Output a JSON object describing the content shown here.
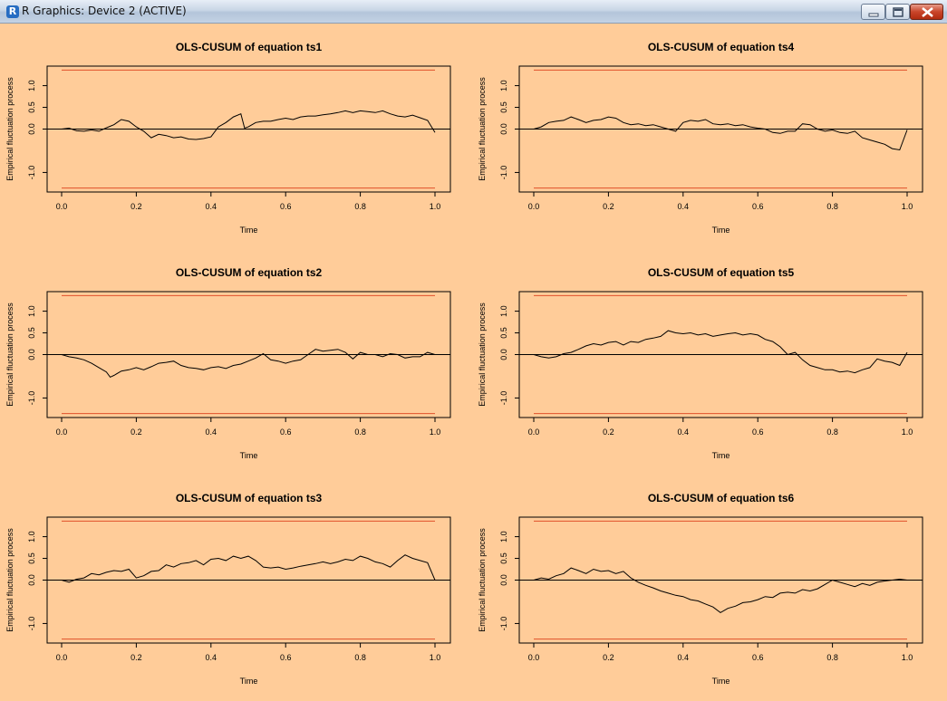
{
  "window": {
    "title": "R Graphics: Device 2 (ACTIVE)",
    "app_icon": "R",
    "controls": [
      "minimize-icon",
      "maximize-icon",
      "close-icon"
    ]
  },
  "colors": {
    "background": "#ffcc99",
    "boundary": "#e0502a",
    "process": "#000000"
  },
  "chart_data": [
    {
      "type": "line",
      "title": "OLS-CUSUM of equation ts1",
      "xlabel": "Time",
      "ylabel": "Empirical fluctuation process",
      "xlim": [
        0,
        1
      ],
      "ylim": [
        -1.45,
        1.45
      ],
      "xticks": [
        "0.0",
        "0.2",
        "0.4",
        "0.6",
        "0.8",
        "1.0"
      ],
      "yticks": [
        "-1.0",
        "0.0",
        "0.5",
        "1.0"
      ],
      "boundary": 1.36,
      "x": [
        0,
        0.02,
        0.04,
        0.06,
        0.08,
        0.1,
        0.12,
        0.14,
        0.16,
        0.18,
        0.2,
        0.22,
        0.24,
        0.26,
        0.28,
        0.3,
        0.32,
        0.34,
        0.36,
        0.38,
        0.4,
        0.42,
        0.44,
        0.46,
        0.48,
        0.49,
        0.5,
        0.52,
        0.54,
        0.56,
        0.58,
        0.6,
        0.62,
        0.64,
        0.66,
        0.68,
        0.7,
        0.72,
        0.74,
        0.76,
        0.78,
        0.8,
        0.82,
        0.84,
        0.86,
        0.88,
        0.9,
        0.92,
        0.94,
        0.96,
        0.98,
        1.0
      ],
      "y": [
        0.0,
        0.02,
        -0.04,
        -0.05,
        -0.02,
        -0.05,
        0.03,
        0.1,
        0.22,
        0.18,
        0.05,
        -0.05,
        -0.2,
        -0.12,
        -0.15,
        -0.2,
        -0.18,
        -0.23,
        -0.24,
        -0.22,
        -0.18,
        0.05,
        0.15,
        0.28,
        0.35,
        0.02,
        0.05,
        0.15,
        0.18,
        0.18,
        0.22,
        0.25,
        0.22,
        0.28,
        0.3,
        0.3,
        0.33,
        0.35,
        0.38,
        0.42,
        0.38,
        0.42,
        0.4,
        0.38,
        0.42,
        0.35,
        0.3,
        0.28,
        0.32,
        0.26,
        0.2,
        -0.08
      ]
    },
    {
      "type": "line",
      "title": "OLS-CUSUM of equation ts4",
      "xlabel": "Time",
      "ylabel": "Empirical fluctuation process",
      "xlim": [
        0,
        1
      ],
      "ylim": [
        -1.45,
        1.45
      ],
      "xticks": [
        "0.0",
        "0.2",
        "0.4",
        "0.6",
        "0.8",
        "1.0"
      ],
      "yticks": [
        "-1.0",
        "0.0",
        "0.5",
        "1.0"
      ],
      "boundary": 1.36,
      "x": [
        0,
        0.02,
        0.04,
        0.06,
        0.08,
        0.1,
        0.12,
        0.14,
        0.16,
        0.18,
        0.2,
        0.22,
        0.24,
        0.26,
        0.28,
        0.3,
        0.32,
        0.34,
        0.36,
        0.38,
        0.4,
        0.42,
        0.44,
        0.46,
        0.48,
        0.5,
        0.52,
        0.54,
        0.56,
        0.58,
        0.6,
        0.62,
        0.64,
        0.66,
        0.68,
        0.7,
        0.72,
        0.74,
        0.76,
        0.78,
        0.8,
        0.82,
        0.84,
        0.86,
        0.88,
        0.9,
        0.92,
        0.94,
        0.96,
        0.98,
        1.0
      ],
      "y": [
        0.0,
        0.05,
        0.15,
        0.18,
        0.2,
        0.28,
        0.22,
        0.15,
        0.2,
        0.22,
        0.28,
        0.25,
        0.15,
        0.1,
        0.12,
        0.08,
        0.1,
        0.05,
        0.0,
        -0.05,
        0.15,
        0.2,
        0.18,
        0.22,
        0.12,
        0.1,
        0.12,
        0.08,
        0.1,
        0.05,
        0.02,
        0.0,
        -0.08,
        -0.1,
        -0.05,
        -0.05,
        0.12,
        0.1,
        0.0,
        -0.05,
        -0.02,
        -0.08,
        -0.1,
        -0.05,
        -0.2,
        -0.25,
        -0.3,
        -0.35,
        -0.45,
        -0.48,
        -0.02
      ]
    },
    {
      "type": "line",
      "title": "OLS-CUSUM of equation ts2",
      "xlabel": "Time",
      "ylabel": "Empirical fluctuation process",
      "xlim": [
        0,
        1
      ],
      "ylim": [
        -1.45,
        1.45
      ],
      "xticks": [
        "0.0",
        "0.2",
        "0.4",
        "0.6",
        "0.8",
        "1.0"
      ],
      "yticks": [
        "-1.0",
        "0.0",
        "0.5",
        "1.0"
      ],
      "boundary": 1.36,
      "x": [
        0,
        0.02,
        0.04,
        0.06,
        0.08,
        0.1,
        0.12,
        0.13,
        0.14,
        0.16,
        0.18,
        0.2,
        0.22,
        0.24,
        0.26,
        0.28,
        0.3,
        0.32,
        0.34,
        0.36,
        0.38,
        0.4,
        0.42,
        0.44,
        0.46,
        0.48,
        0.5,
        0.52,
        0.54,
        0.56,
        0.58,
        0.6,
        0.62,
        0.64,
        0.66,
        0.68,
        0.7,
        0.72,
        0.74,
        0.76,
        0.78,
        0.8,
        0.82,
        0.84,
        0.86,
        0.88,
        0.9,
        0.92,
        0.94,
        0.96,
        0.98,
        1.0
      ],
      "y": [
        0.0,
        -0.05,
        -0.08,
        -0.12,
        -0.2,
        -0.3,
        -0.4,
        -0.52,
        -0.48,
        -0.38,
        -0.35,
        -0.3,
        -0.35,
        -0.28,
        -0.2,
        -0.18,
        -0.15,
        -0.25,
        -0.3,
        -0.32,
        -0.35,
        -0.3,
        -0.28,
        -0.32,
        -0.25,
        -0.22,
        -0.15,
        -0.08,
        0.02,
        -0.12,
        -0.15,
        -0.2,
        -0.15,
        -0.12,
        0.0,
        0.12,
        0.08,
        0.1,
        0.12,
        0.05,
        -0.1,
        0.05,
        0.0,
        0.0,
        -0.05,
        0.02,
        0.0,
        -0.08,
        -0.05,
        -0.05,
        0.05,
        0.0
      ]
    },
    {
      "type": "line",
      "title": "OLS-CUSUM of equation ts5",
      "xlabel": "Time",
      "ylabel": "Empirical fluctuation process",
      "xlim": [
        0,
        1
      ],
      "ylim": [
        -1.45,
        1.45
      ],
      "xticks": [
        "0.0",
        "0.2",
        "0.4",
        "0.6",
        "0.8",
        "1.0"
      ],
      "yticks": [
        "-1.0",
        "0.0",
        "0.5",
        "1.0"
      ],
      "boundary": 1.36,
      "x": [
        0,
        0.02,
        0.04,
        0.06,
        0.08,
        0.1,
        0.12,
        0.14,
        0.16,
        0.18,
        0.2,
        0.22,
        0.24,
        0.26,
        0.28,
        0.3,
        0.32,
        0.34,
        0.36,
        0.38,
        0.4,
        0.42,
        0.44,
        0.46,
        0.48,
        0.5,
        0.52,
        0.54,
        0.56,
        0.58,
        0.6,
        0.62,
        0.64,
        0.66,
        0.68,
        0.7,
        0.72,
        0.74,
        0.76,
        0.78,
        0.8,
        0.82,
        0.84,
        0.86,
        0.88,
        0.9,
        0.92,
        0.94,
        0.96,
        0.98,
        1.0
      ],
      "y": [
        0.0,
        -0.05,
        -0.08,
        -0.05,
        0.02,
        0.05,
        0.12,
        0.2,
        0.25,
        0.22,
        0.28,
        0.3,
        0.22,
        0.3,
        0.28,
        0.35,
        0.38,
        0.42,
        0.55,
        0.5,
        0.48,
        0.5,
        0.45,
        0.48,
        0.42,
        0.45,
        0.48,
        0.5,
        0.45,
        0.48,
        0.45,
        0.35,
        0.3,
        0.18,
        0.0,
        0.05,
        -0.12,
        -0.25,
        -0.3,
        -0.35,
        -0.35,
        -0.4,
        -0.38,
        -0.42,
        -0.35,
        -0.3,
        -0.1,
        -0.15,
        -0.18,
        -0.25,
        0.05
      ]
    },
    {
      "type": "line",
      "title": "OLS-CUSUM of equation ts3",
      "xlabel": "Time",
      "ylabel": "Empirical fluctuation process",
      "xlim": [
        0,
        1
      ],
      "ylim": [
        -1.45,
        1.45
      ],
      "xticks": [
        "0.0",
        "0.2",
        "0.4",
        "0.6",
        "0.8",
        "1.0"
      ],
      "yticks": [
        "-1.0",
        "0.0",
        "0.5",
        "1.0"
      ],
      "boundary": 1.36,
      "x": [
        0,
        0.02,
        0.04,
        0.06,
        0.08,
        0.1,
        0.12,
        0.14,
        0.16,
        0.18,
        0.2,
        0.22,
        0.24,
        0.26,
        0.28,
        0.3,
        0.32,
        0.34,
        0.36,
        0.38,
        0.4,
        0.42,
        0.44,
        0.46,
        0.48,
        0.5,
        0.52,
        0.54,
        0.56,
        0.58,
        0.6,
        0.62,
        0.64,
        0.66,
        0.68,
        0.7,
        0.72,
        0.74,
        0.76,
        0.78,
        0.8,
        0.82,
        0.84,
        0.86,
        0.88,
        0.9,
        0.92,
        0.94,
        0.96,
        0.98,
        1.0
      ],
      "y": [
        0.0,
        -0.05,
        0.02,
        0.05,
        0.15,
        0.12,
        0.18,
        0.22,
        0.2,
        0.25,
        0.05,
        0.1,
        0.2,
        0.22,
        0.35,
        0.3,
        0.38,
        0.4,
        0.45,
        0.35,
        0.48,
        0.5,
        0.45,
        0.55,
        0.5,
        0.55,
        0.45,
        0.3,
        0.28,
        0.3,
        0.25,
        0.28,
        0.32,
        0.35,
        0.38,
        0.42,
        0.38,
        0.42,
        0.48,
        0.45,
        0.55,
        0.5,
        0.42,
        0.38,
        0.3,
        0.45,
        0.58,
        0.5,
        0.45,
        0.4,
        0.0
      ]
    },
    {
      "type": "line",
      "title": "OLS-CUSUM of equation ts6",
      "xlabel": "Time",
      "ylabel": "Empirical fluctuation process",
      "xlim": [
        0,
        1
      ],
      "ylim": [
        -1.45,
        1.45
      ],
      "xticks": [
        "0.0",
        "0.2",
        "0.4",
        "0.6",
        "0.8",
        "1.0"
      ],
      "yticks": [
        "-1.0",
        "0.0",
        "0.5",
        "1.0"
      ],
      "boundary": 1.36,
      "x": [
        0,
        0.02,
        0.04,
        0.06,
        0.08,
        0.1,
        0.12,
        0.14,
        0.16,
        0.18,
        0.2,
        0.22,
        0.24,
        0.26,
        0.28,
        0.3,
        0.32,
        0.34,
        0.36,
        0.38,
        0.4,
        0.42,
        0.44,
        0.46,
        0.48,
        0.5,
        0.52,
        0.54,
        0.56,
        0.58,
        0.6,
        0.62,
        0.64,
        0.66,
        0.68,
        0.7,
        0.72,
        0.74,
        0.76,
        0.78,
        0.8,
        0.82,
        0.84,
        0.86,
        0.88,
        0.9,
        0.92,
        0.94,
        0.96,
        0.98,
        1.0
      ],
      "y": [
        0.0,
        0.05,
        0.02,
        0.1,
        0.15,
        0.28,
        0.22,
        0.15,
        0.25,
        0.2,
        0.22,
        0.15,
        0.2,
        0.05,
        -0.05,
        -0.12,
        -0.18,
        -0.25,
        -0.3,
        -0.35,
        -0.38,
        -0.45,
        -0.48,
        -0.55,
        -0.62,
        -0.75,
        -0.65,
        -0.6,
        -0.52,
        -0.5,
        -0.45,
        -0.38,
        -0.4,
        -0.3,
        -0.28,
        -0.3,
        -0.22,
        -0.25,
        -0.2,
        -0.1,
        0.0,
        -0.05,
        -0.1,
        -0.15,
        -0.08,
        -0.12,
        -0.05,
        -0.02,
        0.0,
        0.02,
        0.0
      ]
    }
  ]
}
